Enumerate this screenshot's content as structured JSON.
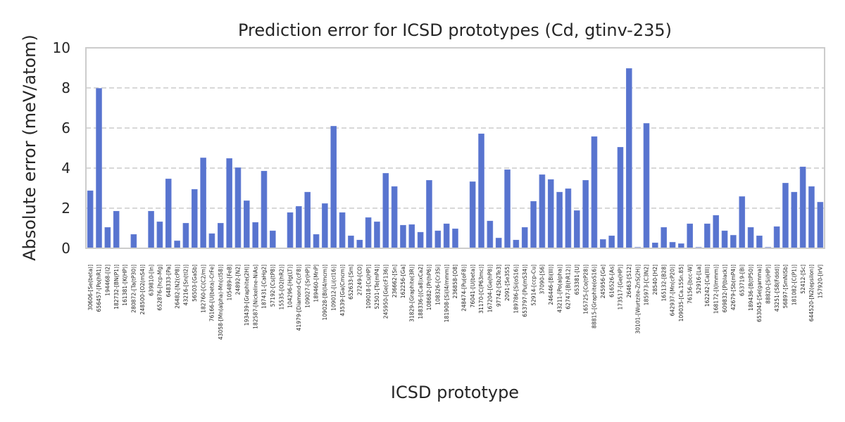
{
  "chart_data": {
    "type": "bar",
    "title": "Prediction error for ICSD prototypes (Cd, gtinv-235)",
    "xlabel": "ICSD prototype",
    "ylabel": "Absolute error (meV/atom)",
    "ylim": [
      0,
      10
    ],
    "yticks": [
      0,
      2,
      4,
      6,
      8,
      10
    ],
    "grid": "y-dashed",
    "bar_color": "#5874cf",
    "categories": [
      "30606-[Se(beta)]",
      "656457-[Po(hR1)]",
      "194468-[I2]",
      "182732-[BN(P1)]",
      "161381-[K(HP)]",
      "280872-[Ta(tP30)]",
      "248500-[O2(mS4)]",
      "639810-[In]",
      "652876-[hcp-Mg]",
      "648333-[Pa]",
      "26482-[N2(cP8)]",
      "43216-[Sn(tI2)]",
      "56503-[GaSb]",
      "182760-[C(C2/m)]",
      "76166-[U(beta)-CrFe]",
      "43058-[Mn(alpha)-Mn(cI58)]",
      "105489-[FeB]",
      "24892-[N2]",
      "193439-[Graphite(2H)]",
      "182587-[Nickeline-NiAs]",
      "187431-[CaHg2]",
      "57192-[Cs(tP8)]",
      "15535-[O2(hR2)]",
      "104296-[Hg(LT)]",
      "41979-[Diamond-C(cF8)]",
      "109027-[Sr(HP)]",
      "189460-[MnP]",
      "109028-[Bi(I4/mcm)]",
      "109012-[Li(cI16)]",
      "43539-[Ga(Cmcm)]",
      "652633-[Sm]",
      "27249-[CO]",
      "109018-[Cs(HP)]",
      "52501-[Te(mP4)]",
      "245950-[Ge(cF136)]",
      "236662-[Sn]",
      "162256-[Ga]",
      "31829-[Graphite(3R)]",
      "188336-[(Ca8)xCa2]",
      "108682-[Pr(hP6)]",
      "108326-[Cr3Si]",
      "181908-[Si(I4/mmm)]",
      "236858-[O8]",
      "248474-[Pu(oF8)]",
      "76041-[U(beta)]",
      "31170-[C(P63mc)]",
      "167204-[Ge(hP8)]",
      "97742-[Sb2Te3]",
      "2091-[Se3S5]",
      "189786-[Si(oS16)]",
      "653797-[Pu(mS34)]",
      "52914-[ccp-Cu]",
      "37090-[S6]",
      "246446-[Bi(III)]",
      "43211-[Po(alpha)]",
      "62747-[B(hR12)]",
      "653381-[U]",
      "165725-[Co(tP28)]",
      "88815-[Graphite(oS16)]",
      "245956-[Ge]",
      "616526-[As]",
      "173517-[Ge(HP)]",
      "26463-[S12]",
      "30101-[Wurtzite-ZnS(2H)]",
      "185973-[C3N2]",
      "28540-[H2]",
      "165132-[B28]",
      "642937-[Mn(cP20)]",
      "109035-[Ca.15Sn.85]",
      "76156-[bcc-W]",
      "52916-[La]",
      "162242-[Ca(III)]",
      "168172-[I(Immm)]",
      "609832-[P(black)]",
      "42679-[Sb(mP4)]",
      "653719-[Bi]",
      "189436-[B(tP50)]",
      "653045-[Se(gamma)]",
      "88820-[Si(HP)]",
      "43251-[S8(Fddd)]",
      "56897-[SmNiSb]",
      "181082-[C(P1)]",
      "52412-[Sc]",
      "644520-[N2(epsilon)]",
      "157920-[IrV]"
    ],
    "values": [
      2.87,
      7.98,
      1.04,
      1.85,
      0.0,
      0.69,
      0.0,
      1.85,
      1.32,
      3.46,
      0.37,
      1.25,
      2.94,
      4.51,
      0.73,
      1.25,
      4.48,
      4.02,
      2.37,
      1.29,
      3.85,
      0.87,
      0.0,
      1.78,
      2.09,
      2.8,
      0.69,
      2.23,
      6.09,
      1.78,
      0.62,
      0.41,
      1.53,
      1.32,
      3.74,
      3.08,
      1.15,
      1.18,
      0.8,
      3.39,
      0.87,
      1.22,
      0.97,
      0.0,
      3.32,
      5.71,
      1.36,
      0.51,
      3.92,
      0.41,
      1.04,
      2.34,
      3.67,
      3.43,
      2.8,
      2.97,
      1.88,
      3.39,
      5.57,
      0.44,
      0.62,
      5.04,
      8.97,
      0.05,
      6.23,
      0.27,
      1.04,
      0.3,
      0.23,
      1.22,
      0.05,
      1.22,
      1.64,
      0.87,
      0.65,
      2.58,
      1.04,
      0.62,
      0.05,
      1.08,
      3.25,
      2.8,
      4.06,
      3.08,
      2.3
    ]
  }
}
